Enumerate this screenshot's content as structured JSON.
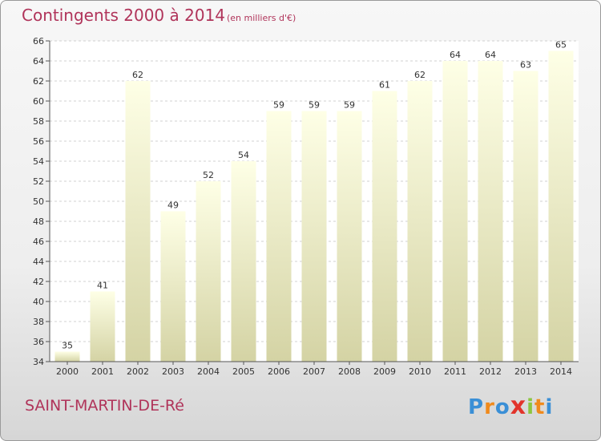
{
  "header": {
    "title": "Contingents 2000 à 2014",
    "subtitle": "(en milliers d'€)"
  },
  "footer": {
    "commune": "SAINT-MARTIN-DE-Ré",
    "logo_letters": [
      "P",
      "r",
      "o",
      "x",
      "i",
      "t",
      "i"
    ]
  },
  "colors": {
    "title": "#b0345a",
    "bar_top": "#feffe6",
    "bar_bottom": "#d4d3a4",
    "logo": [
      "#3a8fd6",
      "#f08a1c",
      "#3a8fd6",
      "#e2342b",
      "#8cc63f",
      "#f08a1c",
      "#3a8fd6"
    ]
  },
  "chart_data": {
    "type": "bar",
    "categories": [
      "2000",
      "2001",
      "2002",
      "2003",
      "2004",
      "2005",
      "2006",
      "2007",
      "2008",
      "2009",
      "2010",
      "2011",
      "2012",
      "2013",
      "2014"
    ],
    "values": [
      35,
      41,
      62,
      49,
      52,
      54,
      59,
      59,
      59,
      61,
      62,
      64,
      64,
      63,
      65
    ],
    "data_labels": [
      "35",
      "41",
      "62",
      "49",
      "52",
      "54",
      "59",
      "59",
      "59",
      "61",
      "62",
      "64",
      "64",
      "63",
      "65"
    ],
    "title": "Contingents 2000 à 2014",
    "xlabel": "",
    "ylabel": "",
    "ylim": [
      34,
      66
    ],
    "yticks": [
      34,
      36,
      38,
      40,
      42,
      44,
      46,
      48,
      50,
      52,
      54,
      56,
      58,
      60,
      62,
      64,
      66
    ],
    "grid": true
  }
}
